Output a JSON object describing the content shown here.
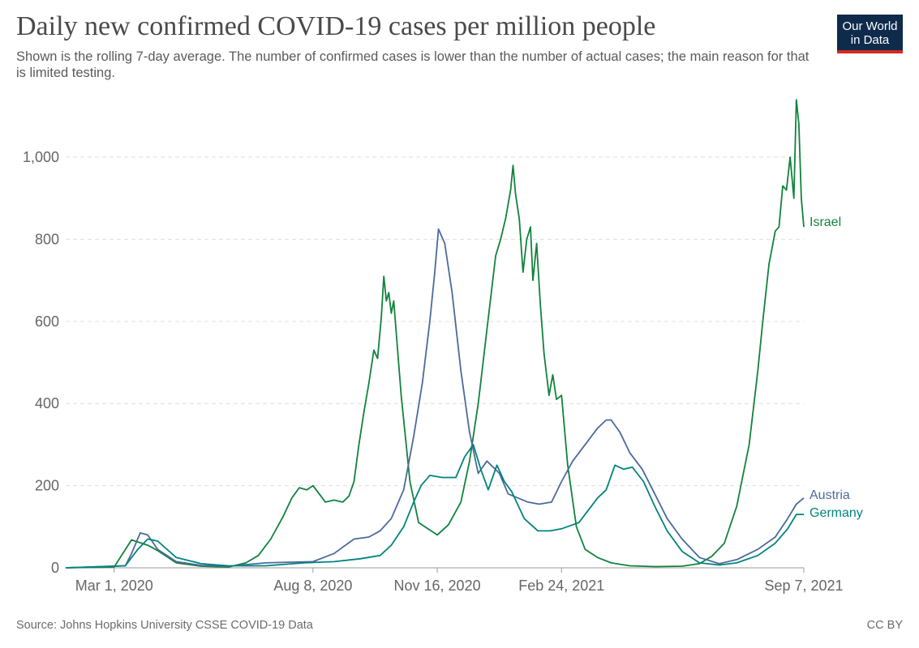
{
  "header": {
    "title": "Daily new confirmed COVID-19 cases per million people",
    "subtitle": "Shown is the rolling 7-day average. The number of confirmed cases is lower than the number of actual cases; the main reason for that is limited testing.",
    "logo_line1": "Our World",
    "logo_line2": "in Data"
  },
  "footer": {
    "source": "Source: Johns Hopkins University CSSE COVID-19 Data",
    "license": "CC BY"
  },
  "colors": {
    "Israel": "#11833c",
    "Austria": "#4c6a9c",
    "Germany": "#00847e",
    "logo_bg": "#0f2b4c",
    "logo_accent": "#d42b21"
  },
  "chart_data": {
    "type": "line",
    "title": "Daily new confirmed COVID-19 cases per million people",
    "xlabel": "",
    "ylabel": "",
    "x_type": "date",
    "xlim": [
      "2020-01-22",
      "2021-09-07"
    ],
    "ylim": [
      0,
      1150
    ],
    "yticks": [
      0,
      200,
      400,
      600,
      800,
      1000
    ],
    "ytick_labels": [
      "0",
      "200",
      "400",
      "600",
      "800",
      "1,000"
    ],
    "xticks": [
      "2020-03-01",
      "2020-08-08",
      "2020-11-16",
      "2021-02-24",
      "2021-09-07"
    ],
    "xtick_labels": [
      "Mar 1, 2020",
      "Aug 8, 2020",
      "Nov 16, 2020",
      "Feb 24, 2021",
      "Sep 7, 2021"
    ],
    "grid": "horizontal dashed",
    "legend": "line-end labels",
    "series": [
      {
        "name": "Israel",
        "x": [
          "2020-01-22",
          "2020-03-01",
          "2020-03-15",
          "2020-03-28",
          "2020-04-05",
          "2020-04-20",
          "2020-05-10",
          "2020-06-01",
          "2020-06-15",
          "2020-06-25",
          "2020-07-05",
          "2020-07-15",
          "2020-07-22",
          "2020-07-28",
          "2020-08-03",
          "2020-08-08",
          "2020-08-18",
          "2020-08-25",
          "2020-09-01",
          "2020-09-06",
          "2020-09-10",
          "2020-09-14",
          "2020-09-18",
          "2020-09-22",
          "2020-09-26",
          "2020-09-29",
          "2020-10-02",
          "2020-10-04",
          "2020-10-06",
          "2020-10-08",
          "2020-10-10",
          "2020-10-12",
          "2020-10-18",
          "2020-10-25",
          "2020-11-01",
          "2020-11-16",
          "2020-11-25",
          "2020-12-05",
          "2020-12-12",
          "2020-12-19",
          "2020-12-26",
          "2021-01-02",
          "2021-01-06",
          "2021-01-10",
          "2021-01-14",
          "2021-01-16",
          "2021-01-18",
          "2021-01-21",
          "2021-01-24",
          "2021-01-27",
          "2021-01-30",
          "2021-02-01",
          "2021-02-04",
          "2021-02-07",
          "2021-02-10",
          "2021-02-14",
          "2021-02-17",
          "2021-02-20",
          "2021-02-24",
          "2021-03-01",
          "2021-03-08",
          "2021-03-15",
          "2021-03-25",
          "2021-04-05",
          "2021-04-20",
          "2021-05-10",
          "2021-06-01",
          "2021-06-15",
          "2021-06-25",
          "2021-07-05",
          "2021-07-15",
          "2021-07-25",
          "2021-08-01",
          "2021-08-05",
          "2021-08-10",
          "2021-08-15",
          "2021-08-18",
          "2021-08-21",
          "2021-08-24",
          "2021-08-27",
          "2021-08-30",
          "2021-09-01",
          "2021-09-03",
          "2021-09-05",
          "2021-09-07"
        ],
        "y": [
          0,
          2,
          68,
          55,
          42,
          12,
          4,
          2,
          12,
          30,
          70,
          125,
          170,
          195,
          190,
          200,
          160,
          165,
          160,
          175,
          210,
          300,
          380,
          450,
          530,
          510,
          610,
          710,
          650,
          670,
          620,
          650,
          420,
          210,
          110,
          80,
          105,
          160,
          260,
          400,
          580,
          760,
          800,
          850,
          920,
          980,
          910,
          850,
          720,
          800,
          830,
          700,
          790,
          640,
          520,
          420,
          470,
          410,
          420,
          250,
          100,
          45,
          25,
          12,
          5,
          3,
          4,
          10,
          28,
          60,
          150,
          300,
          480,
          600,
          740,
          820,
          830,
          930,
          920,
          1000,
          900,
          1140,
          1080,
          900,
          830
        ]
      },
      {
        "name": "Austria",
        "x": [
          "2020-01-22",
          "2020-03-10",
          "2020-03-15",
          "2020-03-22",
          "2020-03-28",
          "2020-04-05",
          "2020-04-20",
          "2020-05-10",
          "2020-06-01",
          "2020-07-01",
          "2020-07-25",
          "2020-08-08",
          "2020-08-25",
          "2020-09-10",
          "2020-09-22",
          "2020-10-01",
          "2020-10-10",
          "2020-10-20",
          "2020-10-28",
          "2020-11-04",
          "2020-11-10",
          "2020-11-14",
          "2020-11-17",
          "2020-11-22",
          "2020-11-28",
          "2020-12-05",
          "2020-12-12",
          "2020-12-19",
          "2020-12-26",
          "2021-01-05",
          "2021-01-12",
          "2021-01-20",
          "2021-01-28",
          "2021-02-06",
          "2021-02-16",
          "2021-02-24",
          "2021-03-05",
          "2021-03-15",
          "2021-03-25",
          "2021-04-01",
          "2021-04-05",
          "2021-04-12",
          "2021-04-20",
          "2021-04-30",
          "2021-05-10",
          "2021-05-20",
          "2021-06-01",
          "2021-06-15",
          "2021-07-01",
          "2021-07-15",
          "2021-08-01",
          "2021-08-15",
          "2021-08-25",
          "2021-09-01",
          "2021-09-07"
        ],
        "y": [
          0,
          5,
          35,
          85,
          80,
          45,
          15,
          6,
          4,
          12,
          14,
          15,
          35,
          70,
          75,
          90,
          120,
          190,
          320,
          450,
          600,
          720,
          825,
          790,
          670,
          480,
          330,
          230,
          260,
          230,
          180,
          170,
          160,
          155,
          160,
          210,
          260,
          300,
          340,
          360,
          360,
          330,
          280,
          240,
          180,
          120,
          70,
          25,
          10,
          20,
          45,
          75,
          120,
          155,
          170
        ]
      },
      {
        "name": "Germany",
        "x": [
          "2020-01-22",
          "2020-03-10",
          "2020-03-20",
          "2020-03-28",
          "2020-04-05",
          "2020-04-20",
          "2020-05-10",
          "2020-06-01",
          "2020-07-01",
          "2020-08-01",
          "2020-08-25",
          "2020-09-15",
          "2020-10-01",
          "2020-10-10",
          "2020-10-20",
          "2020-10-28",
          "2020-11-03",
          "2020-11-10",
          "2020-11-20",
          "2020-12-01",
          "2020-12-08",
          "2020-12-15",
          "2020-12-21",
          "2020-12-27",
          "2021-01-03",
          "2021-01-09",
          "2021-01-15",
          "2021-01-25",
          "2021-02-05",
          "2021-02-15",
          "2021-02-24",
          "2021-03-10",
          "2021-03-25",
          "2021-04-01",
          "2021-04-08",
          "2021-04-15",
          "2021-04-22",
          "2021-05-01",
          "2021-05-10",
          "2021-05-20",
          "2021-06-01",
          "2021-06-15",
          "2021-07-01",
          "2021-07-15",
          "2021-08-01",
          "2021-08-15",
          "2021-08-25",
          "2021-09-01",
          "2021-09-07"
        ],
        "y": [
          0,
          5,
          45,
          70,
          65,
          25,
          10,
          5,
          5,
          12,
          15,
          22,
          30,
          55,
          100,
          160,
          200,
          225,
          220,
          220,
          270,
          300,
          240,
          190,
          250,
          210,
          185,
          120,
          90,
          90,
          95,
          110,
          170,
          190,
          250,
          240,
          245,
          210,
          150,
          90,
          40,
          12,
          7,
          12,
          30,
          60,
          95,
          130,
          130
        ]
      }
    ]
  }
}
